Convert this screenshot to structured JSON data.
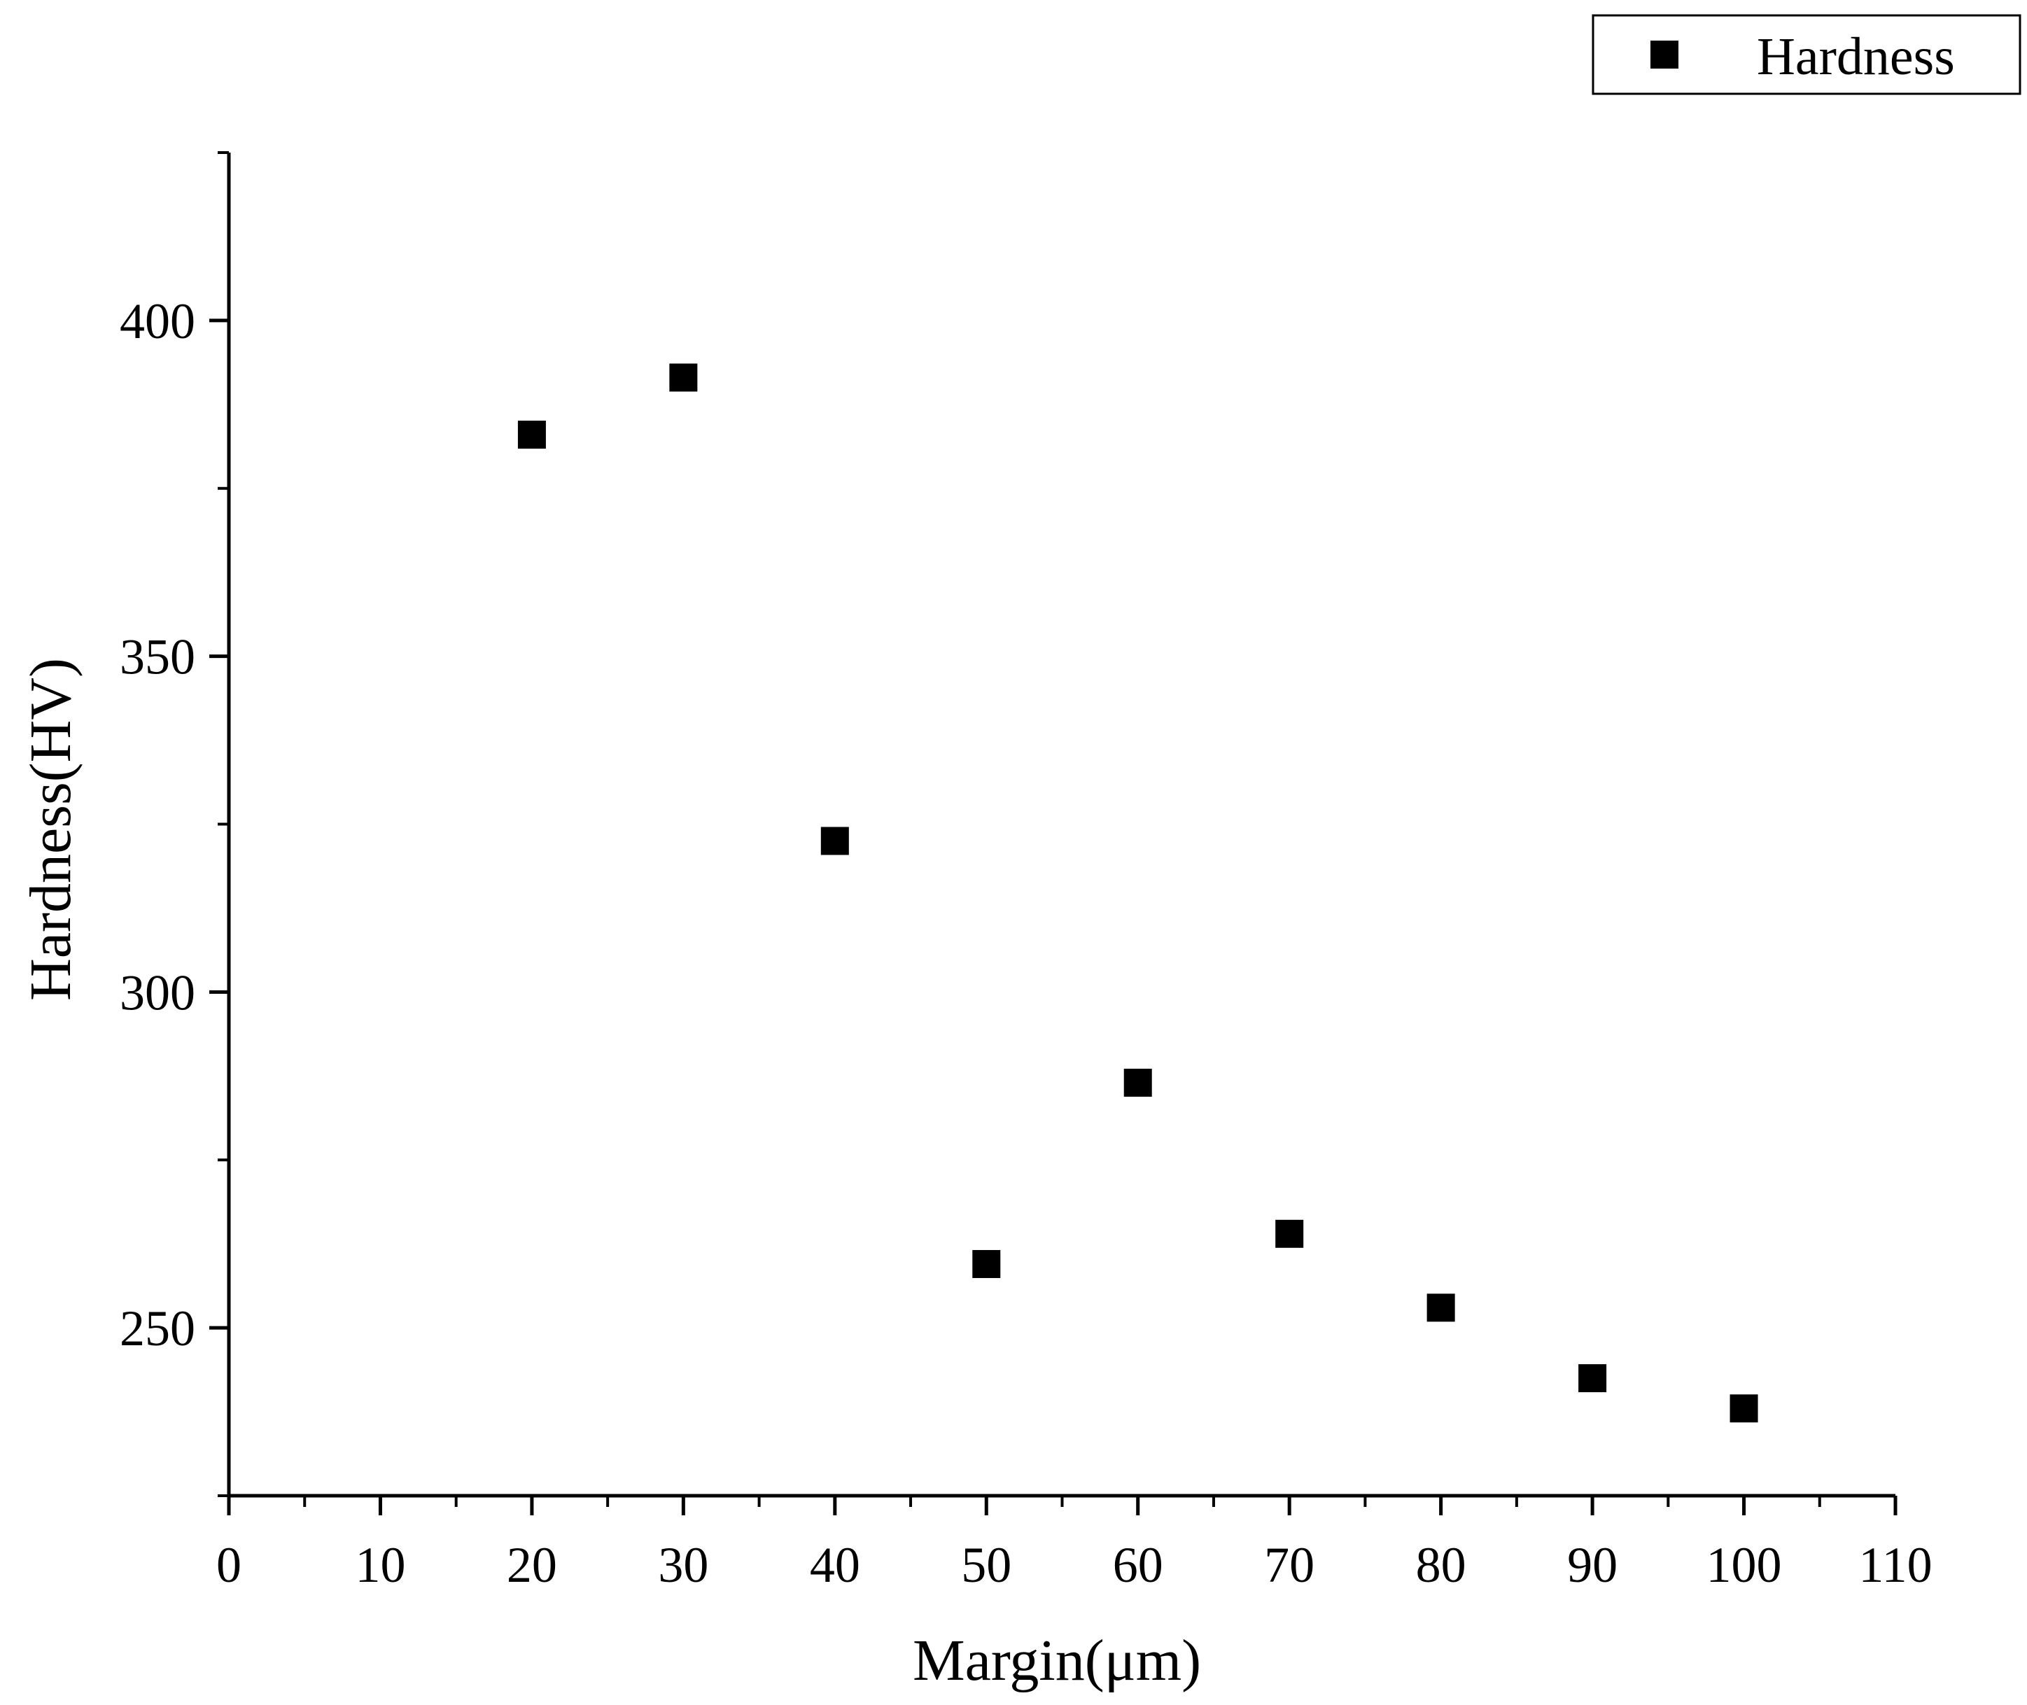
{
  "chart_data": {
    "type": "scatter",
    "title": "",
    "xlabel": "Margin(μm)",
    "ylabel": "Hardness(HV)",
    "xlim": [
      0,
      110
    ],
    "ylim": [
      225,
      425
    ],
    "x_ticks": [
      0,
      10,
      20,
      30,
      40,
      50,
      60,
      70,
      80,
      90,
      100,
      110
    ],
    "y_ticks": [
      250,
      300,
      350,
      400
    ],
    "grid": false,
    "legend_position": "top-right",
    "marker": "square",
    "colors": {
      "marker": "#000000",
      "axis": "#000000"
    },
    "series": [
      {
        "name": "Hardness",
        "x": [
          20,
          30,
          40,
          50,
          60,
          70,
          80,
          90,
          100
        ],
        "y": [
          383,
          391.5,
          322.5,
          259.5,
          286.5,
          264,
          253,
          242.5,
          238
        ]
      }
    ]
  }
}
